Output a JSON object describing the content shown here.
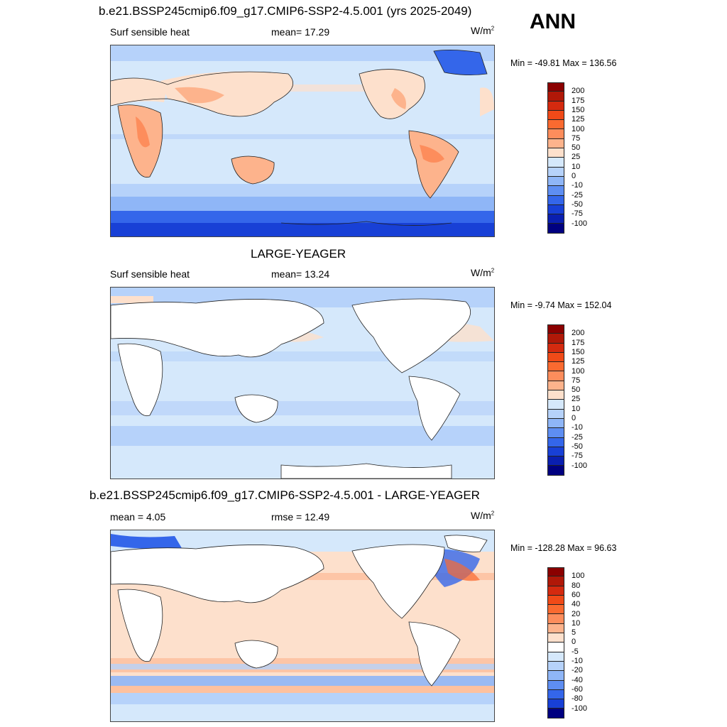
{
  "season": "ANN",
  "panels": [
    {
      "title": "b.e21.BSSP245cmip6.f09_g17.CMIP6-SSP2-4.5.001 (yrs 2025-2049)",
      "left_label": "Surf sensible heat",
      "center_label": "mean=  17.29",
      "units_base": "W/m",
      "units_exp": "2",
      "minmax": "Min = -49.81 Max = 136.56"
    },
    {
      "title": "LARGE-YEAGER",
      "left_label": "Surf sensible heat",
      "center_label": "mean=  13.24",
      "units_base": "W/m",
      "units_exp": "2",
      "minmax": "Min =  -9.74 Max = 152.04"
    },
    {
      "title": "b.e21.BSSP245cmip6.f09_g17.CMIP6-SSP2-4.5.001 - LARGE-YEAGER",
      "left_label": "mean =   4.05",
      "center_label": "rmse =  12.49",
      "units_base": "W/m",
      "units_exp": "2",
      "minmax": "Min = -128.28 Max =  96.63"
    }
  ],
  "chart_data": [
    {
      "type": "heatmap",
      "title": "b.e21.BSSP245cmip6.f09_g17.CMIP6-SSP2-4.5.001 (yrs 2025-2049)",
      "variable": "Surf sensible heat",
      "mean": 17.29,
      "min": -49.81,
      "max": 136.56,
      "units": "W/m2",
      "colorbar_levels": [
        200,
        175,
        150,
        125,
        100,
        75,
        50,
        25,
        10,
        0,
        -10,
        -25,
        -50,
        -75,
        -100
      ],
      "colorbar_colors": [
        "#8b0000",
        "#b01808",
        "#d42a0f",
        "#f04a18",
        "#fa6a30",
        "#fd8d5c",
        "#fdb38c",
        "#fde0cc",
        "#d5e8fb",
        "#b6d2fa",
        "#8fb6f7",
        "#5e8ef2",
        "#3466ea",
        "#1840d6",
        "#0a1fb0",
        "#000080"
      ]
    },
    {
      "type": "heatmap",
      "title": "LARGE-YEAGER",
      "variable": "Surf sensible heat",
      "mean": 13.24,
      "min": -9.74,
      "max": 152.04,
      "units": "W/m2",
      "colorbar_levels": [
        200,
        175,
        150,
        125,
        100,
        75,
        50,
        25,
        10,
        0,
        -10,
        -25,
        -50,
        -75,
        -100
      ],
      "colorbar_colors": [
        "#8b0000",
        "#b01808",
        "#d42a0f",
        "#f04a18",
        "#fa6a30",
        "#fd8d5c",
        "#fdb38c",
        "#fde0cc",
        "#d5e8fb",
        "#b6d2fa",
        "#8fb6f7",
        "#5e8ef2",
        "#3466ea",
        "#1840d6",
        "#0a1fb0",
        "#000080"
      ]
    },
    {
      "type": "heatmap",
      "title": "b.e21.BSSP245cmip6.f09_g17.CMIP6-SSP2-4.5.001 - LARGE-YEAGER",
      "mean": 4.05,
      "rmse": 12.49,
      "min": -128.28,
      "max": 96.63,
      "units": "W/m2",
      "colorbar_levels": [
        100,
        80,
        60,
        40,
        20,
        10,
        5,
        0,
        -5,
        -10,
        -20,
        -40,
        -60,
        -80,
        -100
      ],
      "colorbar_colors": [
        "#8b0000",
        "#b01808",
        "#d42a0f",
        "#f04a18",
        "#fa6a30",
        "#fd8d5c",
        "#fdb38c",
        "#fde0cc",
        "#ffffff",
        "#d5e8fb",
        "#b6d2fa",
        "#8fb6f7",
        "#5e8ef2",
        "#3466ea",
        "#1840d6",
        "#000080"
      ]
    }
  ]
}
